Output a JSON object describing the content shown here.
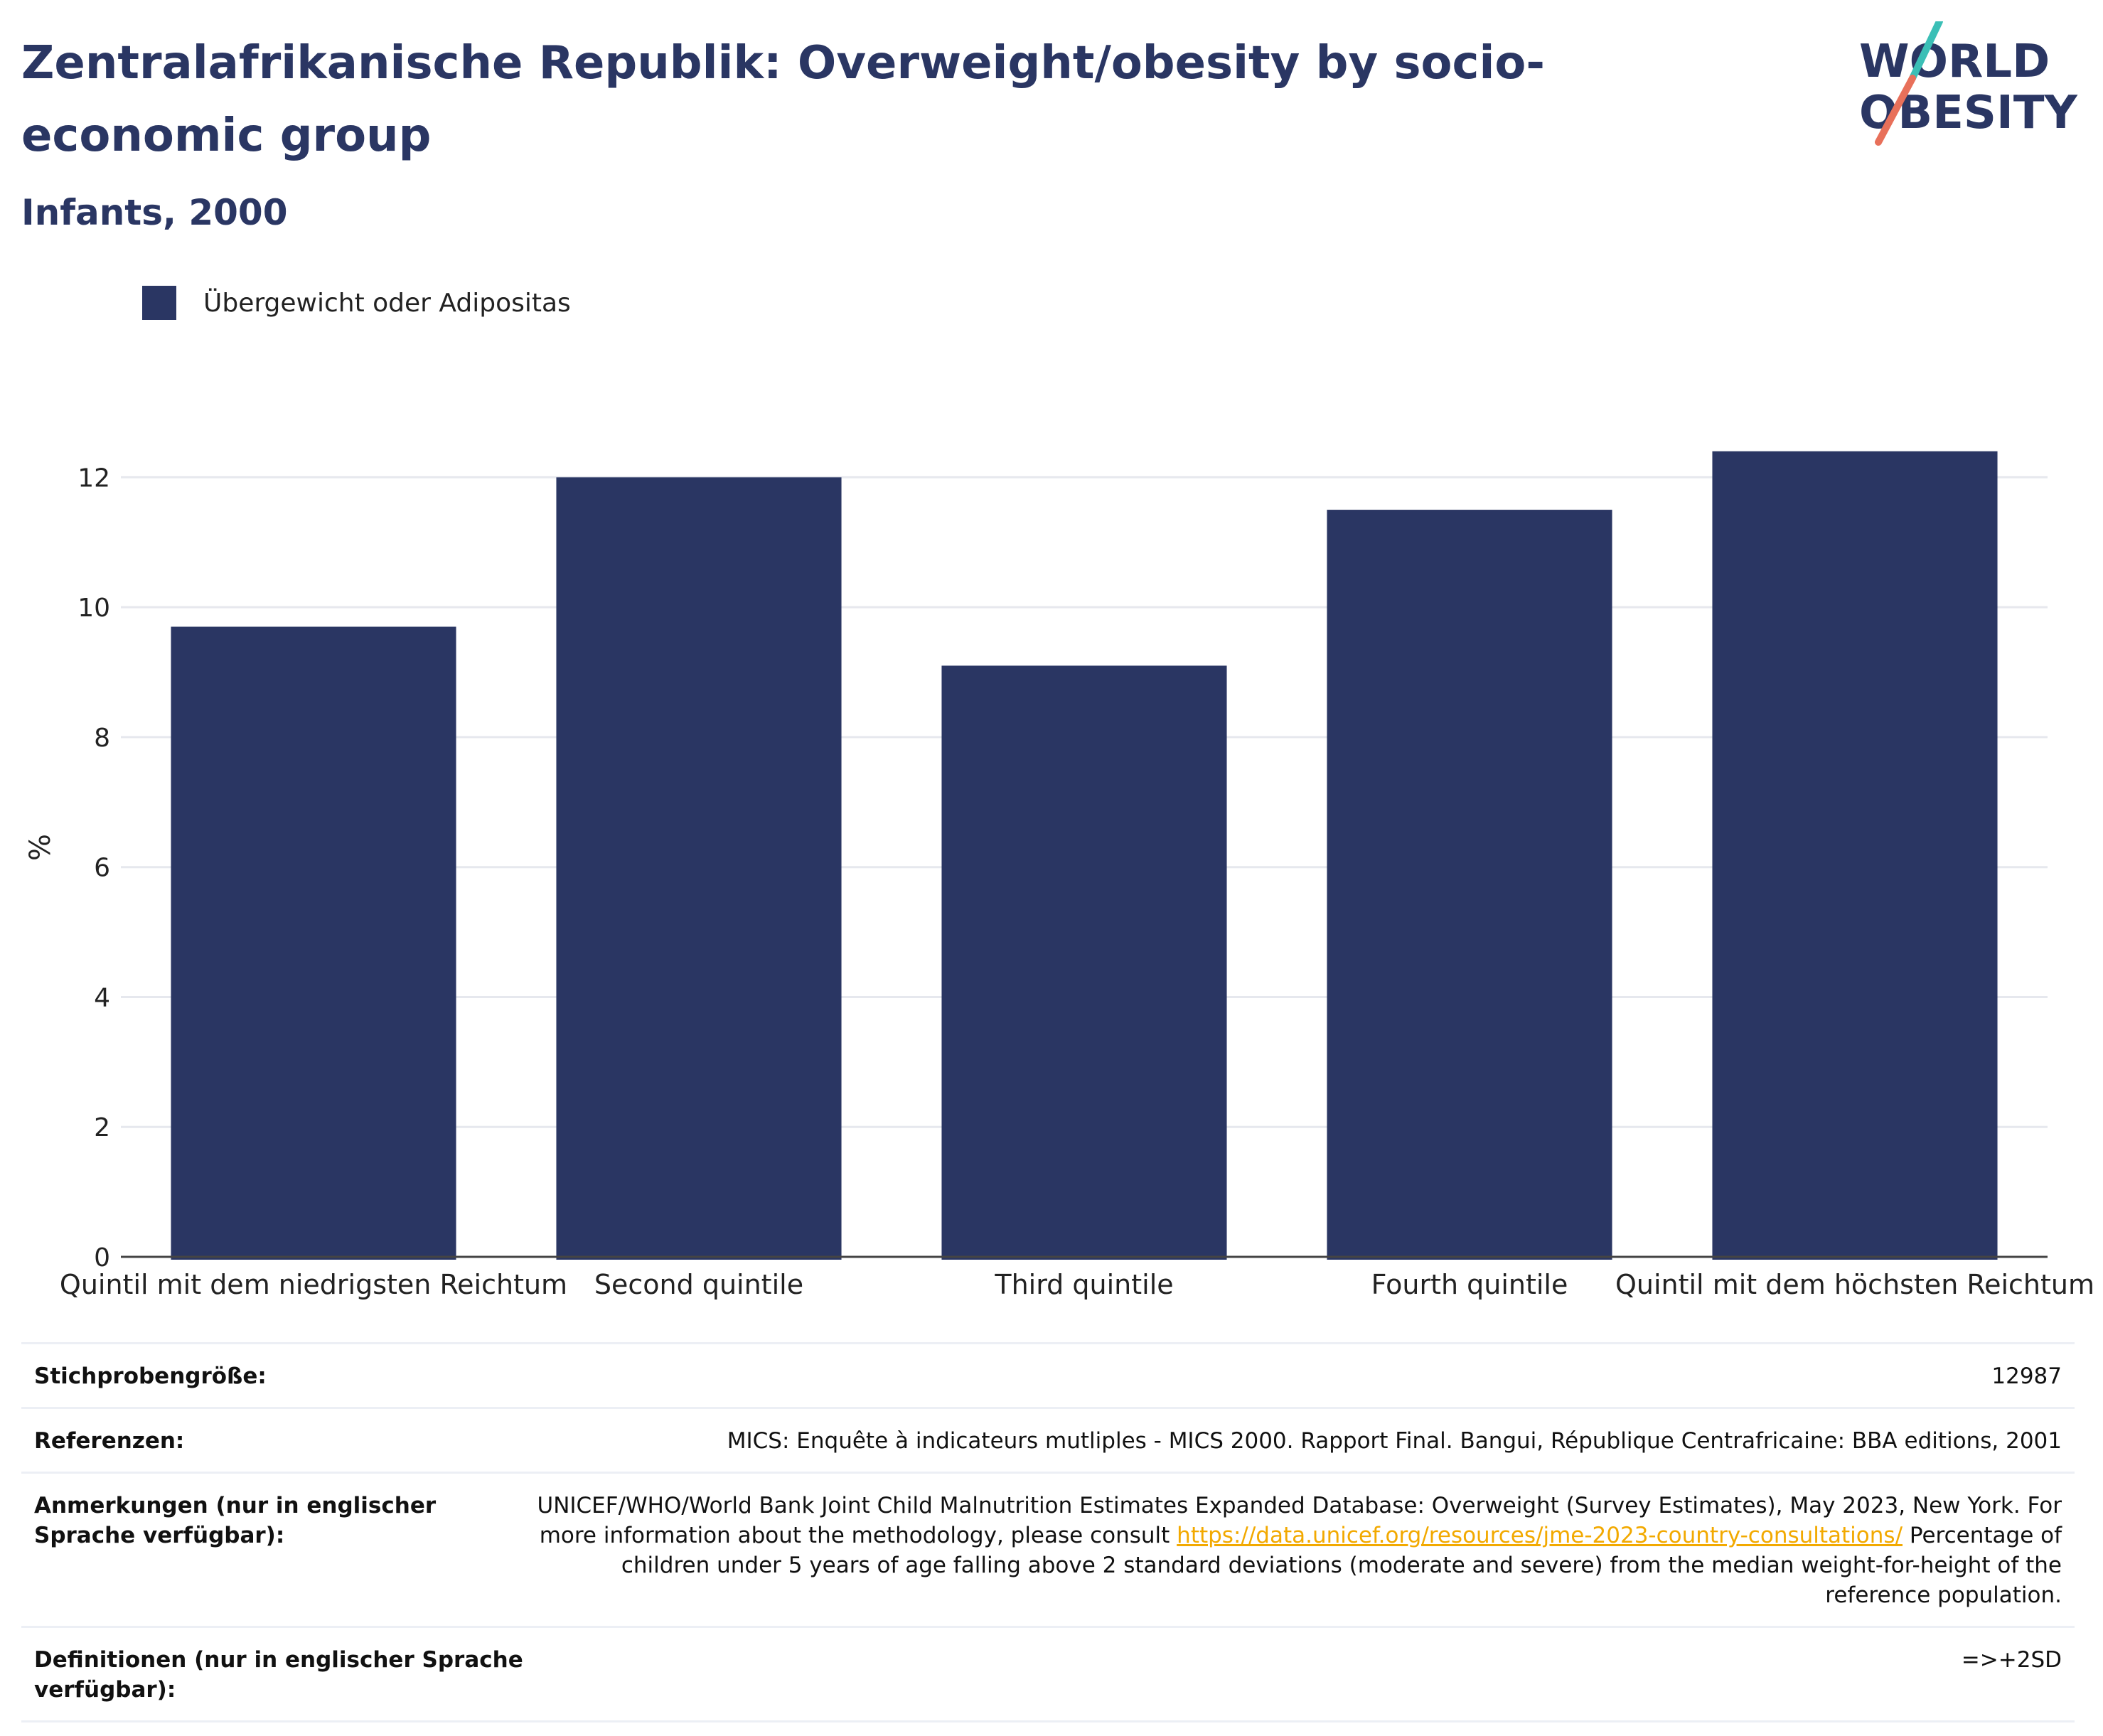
{
  "header": {
    "title": "Zentralafrikanische Republik: Overweight/obesity by socio-economic group",
    "subtitle": "Infants, 2000"
  },
  "logo": {
    "text_line1": "WORLD",
    "text_line2": "OBESITY",
    "colors": {
      "text": "#2a3663",
      "slash_top": "#3bbfb6",
      "slash_bottom": "#e8705a"
    }
  },
  "legend": {
    "label": "Übergewicht oder Adipositas",
    "color": "#2a3663"
  },
  "chart_data": {
    "type": "bar",
    "title": "",
    "xlabel": "",
    "ylabel": "%",
    "ylim": [
      0,
      13
    ],
    "yticks": [
      0,
      2,
      4,
      6,
      8,
      10,
      12
    ],
    "grid": true,
    "categories": [
      "Quintil mit dem niedrigsten Reichtum",
      "Second quintile",
      "Third quintile",
      "Fourth quintile",
      "Quintil mit dem höchsten Reichtum"
    ],
    "series": [
      {
        "name": "Übergewicht oder Adipositas",
        "color": "#2a3663",
        "values": [
          9.7,
          12.0,
          9.1,
          11.5,
          12.4
        ]
      }
    ]
  },
  "info": {
    "rows": [
      {
        "key": "Stichprobengröße:",
        "value": "12987"
      },
      {
        "key": "Referenzen:",
        "value": "MICS: Enquête à indicateurs mutliples - MICS 2000. Rapport Final. Bangui, République Centrafricaine: BBA editions, 2001"
      },
      {
        "key": "Anmerkungen (nur in englischer Sprache verfügbar):",
        "value_before": "UNICEF/WHO/World Bank Joint Child Malnutrition Estimates Expanded Database: Overweight (Survey Estimates), May 2023, New York. For more information about the methodology, please consult ",
        "link": "https://data.unicef.org/resources/jme-2023-country-consultations/",
        "value_after": " Percentage of children under 5 years of age falling above 2 standard deviations (moderate and severe) from the median weight-for-height of the reference population."
      },
      {
        "key": "Definitionen (nur in englischer Sprache verfügbar):",
        "value": "=>+2SD"
      }
    ]
  }
}
